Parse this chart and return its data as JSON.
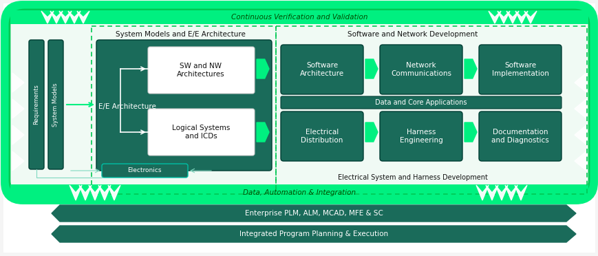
{
  "bg_color": "#f5f5f5",
  "dark_teal": "#1a6b5a",
  "mid_teal": "#1a7a6a",
  "light_fill": "#e8f8ee",
  "bright_green": "#00f080",
  "lime_green": "#00e676",
  "border_green": "#00c853",
  "white": "#ffffff",
  "near_white": "#f0faf4",
  "cvv_label": "Continuous Verification and Validation",
  "dai_label": "Data, Automation & Integration",
  "eplm_label": "Enterprise PLM, ALM, MCAD, MFE & SC",
  "ippe_label": "Integrated Program Planning & Execution",
  "sma_label": "System Models and E/E Architecture",
  "snd_label": "Software and Network Development",
  "esh_label": "Electrical System and Harness Development",
  "dca_label": "Data and Core Applications",
  "req_label": "Requirements",
  "sm_label": "System Models",
  "ee_label": "E/E Architecture",
  "elec_label": "Electronics",
  "sw_nw_label": "SW and NW\nArchitectures",
  "log_sys_label": "Logical Systems\nand ICDs",
  "sa_label": "Software\nArchitecture",
  "nc_label": "Network\nCommunications",
  "si_label": "Software\nImplementation",
  "ed_label": "Electrical\nDistribution",
  "he_label": "Harness\nEngineering",
  "dd_label": "Documentation\nand Diagnostics"
}
